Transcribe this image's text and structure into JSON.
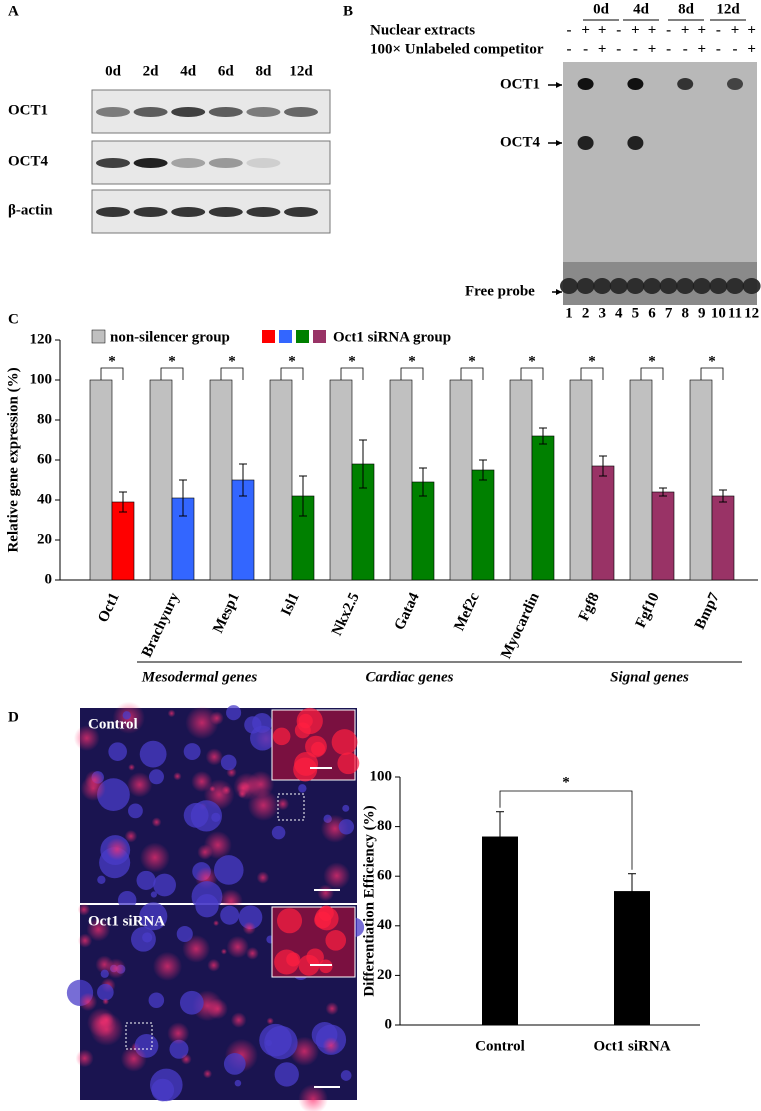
{
  "panels": {
    "a": {
      "label": "A",
      "lanes": [
        "0d",
        "2d",
        "4d",
        "6d",
        "8d",
        "12d"
      ],
      "rows": [
        "OCT1",
        "OCT4",
        "β-actin"
      ]
    },
    "b": {
      "label": "B",
      "days": [
        "0d",
        "4d",
        "8d",
        "12d"
      ],
      "row_labels": [
        "Nuclear extracts",
        "100× Unlabeled competitor"
      ],
      "signs": [
        [
          "-",
          "+",
          "+",
          "-",
          "+",
          "+",
          "-",
          "+",
          "+",
          "-",
          "+",
          "+"
        ],
        [
          "-",
          "-",
          "+",
          "-",
          "-",
          "+",
          "-",
          "-",
          "+",
          "-",
          "-",
          "+"
        ]
      ],
      "bands": [
        "OCT1",
        "OCT4",
        "Free probe"
      ],
      "lanes": [
        1,
        2,
        3,
        4,
        5,
        6,
        7,
        8,
        9,
        10,
        11,
        12
      ]
    },
    "d": {
      "label": "D",
      "images": [
        "Control",
        "Oct1 siRNA"
      ]
    }
  },
  "chart_data": [
    {
      "type": "bar",
      "label": "C",
      "ylabel": "Relative gene expression (%)",
      "categories": [
        "Oct1",
        "Brachyury",
        "Mesp1",
        "Isl1",
        "Nkx2.5",
        "Gata4",
        "Mef2c",
        "Myocardin",
        "Fgf8",
        "Fgf10",
        "Bmp7"
      ],
      "series": [
        {
          "name": "non-silencer group",
          "color": "#c0c0c0",
          "values": [
            100,
            100,
            100,
            100,
            100,
            100,
            100,
            100,
            100,
            100,
            100
          ]
        },
        {
          "name": "Oct1 siRNA group",
          "colors": [
            "#ff0000",
            "#3366ff",
            "#3366ff",
            "#008000",
            "#008000",
            "#008000",
            "#008000",
            "#008000",
            "#993366",
            "#993366",
            "#993366"
          ],
          "values": [
            39,
            41,
            50,
            42,
            58,
            49,
            55,
            72,
            57,
            44,
            42
          ],
          "errors": [
            5,
            9,
            8,
            10,
            12,
            7,
            5,
            4,
            5,
            2,
            3
          ]
        }
      ],
      "significance": [
        "*",
        "*",
        "*",
        "*",
        "*",
        "*",
        "*",
        "*",
        "*",
        "*",
        "*"
      ],
      "groups": [
        "Mesodermal genes",
        "Cardiac genes",
        "Signal genes"
      ],
      "ylim": [
        0,
        120
      ],
      "yticks": [
        0,
        20,
        40,
        60,
        80,
        100,
        120
      ]
    },
    {
      "type": "bar",
      "ylabel": "Differentiation Efficiency (%)",
      "categories": [
        "Control",
        "Oct1 siRNA"
      ],
      "values": [
        76,
        54
      ],
      "errors": [
        10,
        7
      ],
      "color": "#000000",
      "significance": "*",
      "ylim": [
        0,
        100
      ],
      "yticks": [
        0,
        20,
        40,
        60,
        80,
        100
      ]
    }
  ]
}
